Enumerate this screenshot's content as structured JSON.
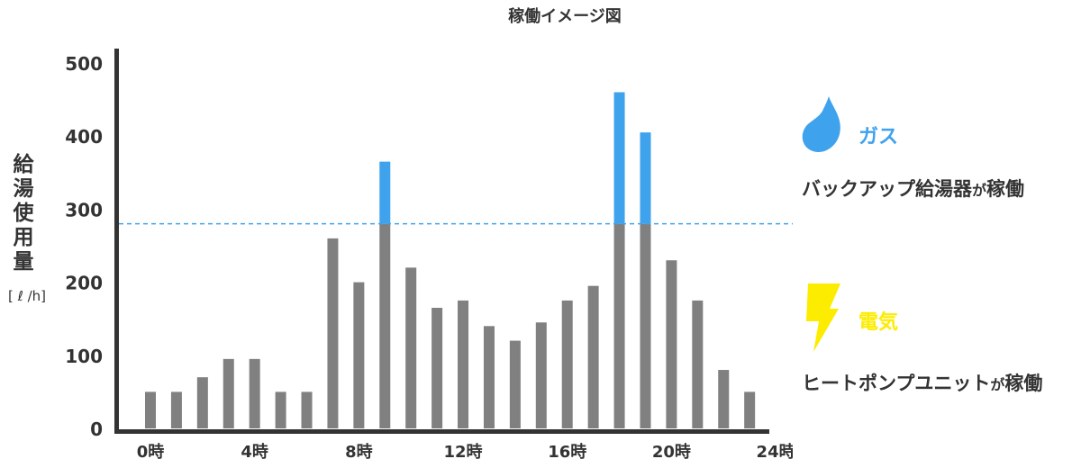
{
  "chart_data": {
    "type": "bar",
    "title": "稼働イメージ図",
    "ylabel": "給湯使用量",
    "yunit": "[ ℓ /h]",
    "ylim": [
      0,
      500
    ],
    "yticks": [
      0,
      100,
      200,
      300,
      400,
      500
    ],
    "x_tick_labels": [
      {
        "hour": 0,
        "label": "0時"
      },
      {
        "hour": 4,
        "label": "4時"
      },
      {
        "hour": 8,
        "label": "8時"
      },
      {
        "hour": 12,
        "label": "12時"
      },
      {
        "hour": 16,
        "label": "16時"
      },
      {
        "hour": 20,
        "label": "20時"
      },
      {
        "hour": 24,
        "label": "24時"
      }
    ],
    "hours": [
      0,
      1,
      2,
      3,
      4,
      5,
      6,
      7,
      8,
      9,
      10,
      11,
      12,
      13,
      14,
      15,
      16,
      17,
      18,
      19,
      20,
      21,
      22,
      23,
      24
    ],
    "threshold": 280,
    "series": [
      {
        "name": "電気",
        "values": [
          50,
          50,
          70,
          95,
          95,
          50,
          50,
          260,
          200,
          280,
          220,
          165,
          175,
          140,
          120,
          145,
          175,
          195,
          280,
          280,
          230,
          175,
          80,
          50,
          0
        ],
        "color": "#808080"
      },
      {
        "name": "ガス",
        "values": [
          0,
          0,
          0,
          0,
          0,
          0,
          0,
          0,
          0,
          85,
          0,
          0,
          0,
          0,
          0,
          0,
          0,
          0,
          180,
          125,
          0,
          0,
          0,
          0,
          0
        ],
        "color": "#3fa2ec"
      }
    ],
    "colors": {
      "axis": "#333333",
      "threshold_line": "#3fa2ec",
      "text": "#333333"
    }
  },
  "legend": {
    "gas": {
      "name": "ガス",
      "desc": "バックアップ給湯器",
      "desc_suffix": "が",
      "desc_tail": "稼働",
      "color": "#3fa2ec",
      "icon": "flame-icon"
    },
    "electric": {
      "name": "電気",
      "desc": "ヒートポンプユニット",
      "desc_suffix": "が",
      "desc_tail": "稼働",
      "color": "#fcec00",
      "icon": "lightning-icon"
    }
  }
}
